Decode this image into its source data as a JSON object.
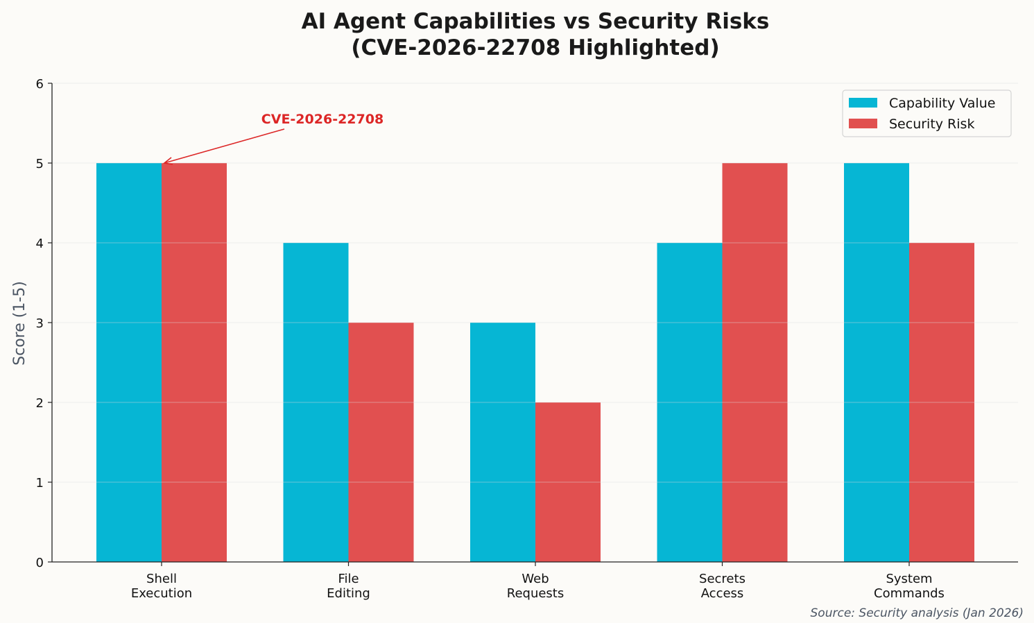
{
  "chart_data": {
    "type": "bar",
    "title": "AI Agent Capabilities vs Security Risks",
    "subtitle": "(CVE-2026-22708 Highlighted)",
    "xlabel": "",
    "ylabel": "Score (1-5)",
    "ylim": [
      0,
      6
    ],
    "yticks": [
      0,
      1,
      2,
      3,
      4,
      5,
      6
    ],
    "grid": true,
    "legend_position": "top-right",
    "categories": [
      "Shell\nExecution",
      "File\nEditing",
      "Web\nRequests",
      "Secrets\nAccess",
      "System\nCommands"
    ],
    "series": [
      {
        "name": "Capability Value",
        "color": "#06b6d4",
        "values": [
          5,
          4,
          3,
          4,
          5
        ]
      },
      {
        "name": "Security Risk",
        "color": "#e15050",
        "values": [
          5,
          3,
          2,
          5,
          4
        ]
      }
    ],
    "annotation": {
      "text": "CVE-2026-22708",
      "target_category": "Shell\nExecution",
      "target_value": 5,
      "color": "#dc2626"
    },
    "source_note": "Source: Security analysis (Jan 2026)"
  }
}
